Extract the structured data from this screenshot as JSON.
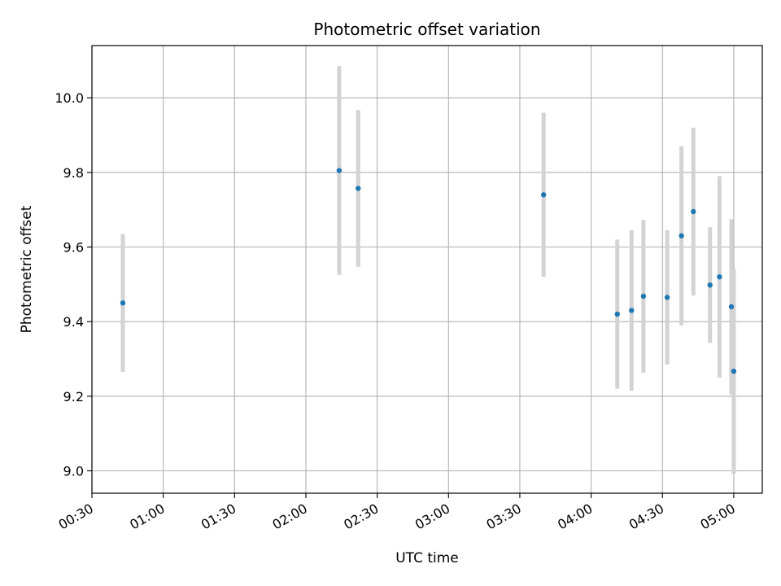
{
  "chart_data": {
    "type": "scatter",
    "title": "Photometric offset variation",
    "xlabel": "UTC time",
    "ylabel": "Photometric offset",
    "x_ticks": [
      "00:30",
      "01:00",
      "01:30",
      "02:00",
      "02:30",
      "03:00",
      "03:30",
      "04:00",
      "04:30",
      "05:00"
    ],
    "y_ticks": [
      "9.0",
      "9.2",
      "9.4",
      "9.6",
      "9.8",
      "10.0"
    ],
    "xlim": [
      "00:30",
      "05:12"
    ],
    "ylim": [
      8.94,
      10.14
    ],
    "grid": true,
    "marker_color": "#1f77b4",
    "errorbar_color": "#d3d3d3",
    "points": [
      {
        "x": "00:43",
        "y": 9.45,
        "err": 0.185
      },
      {
        "x": "02:14",
        "y": 9.805,
        "err": 0.28
      },
      {
        "x": "02:22",
        "y": 9.757,
        "err": 0.21
      },
      {
        "x": "03:40",
        "y": 9.74,
        "err": 0.22
      },
      {
        "x": "04:11",
        "y": 9.42,
        "err": 0.2
      },
      {
        "x": "04:17",
        "y": 9.43,
        "err": 0.215
      },
      {
        "x": "04:22",
        "y": 9.468,
        "err": 0.205
      },
      {
        "x": "04:32",
        "y": 9.465,
        "err": 0.18
      },
      {
        "x": "04:38",
        "y": 9.63,
        "err": 0.24
      },
      {
        "x": "04:43",
        "y": 9.695,
        "err": 0.225
      },
      {
        "x": "04:50",
        "y": 9.498,
        "err": 0.155
      },
      {
        "x": "04:54",
        "y": 9.52,
        "err": 0.27
      },
      {
        "x": "04:59",
        "y": 9.44,
        "err": 0.235
      },
      {
        "x": "05:00",
        "y": 9.267,
        "err": 0.275
      }
    ]
  }
}
